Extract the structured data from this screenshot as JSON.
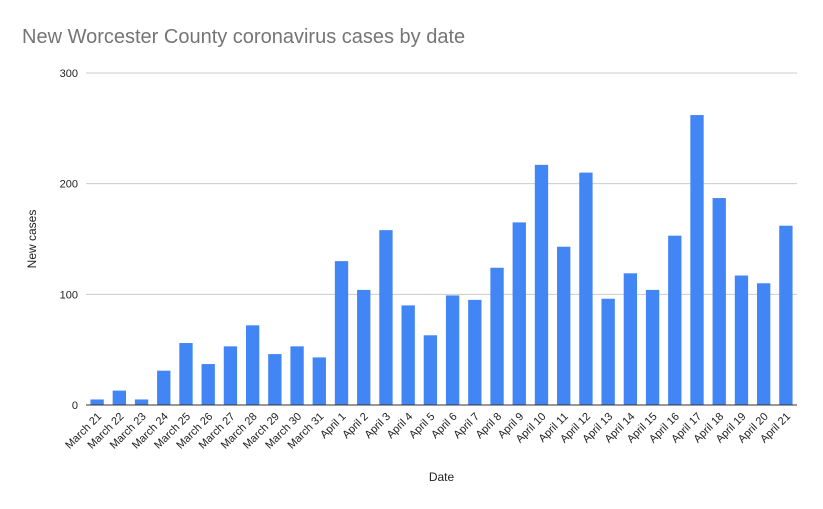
{
  "chart_data": {
    "type": "bar",
    "title": "New Worcester County coronavirus cases by date",
    "xlabel": "Date",
    "ylabel": "New cases",
    "ylim": [
      0,
      300
    ],
    "yticks": [
      0,
      100,
      200,
      300
    ],
    "grid": true,
    "legend": "none",
    "bar_color": "#4285f4",
    "categories": [
      "March 21",
      "March 22",
      "March 23",
      "March 24",
      "March 25",
      "March 26",
      "March 27",
      "March 28",
      "March 29",
      "March 30",
      "March 31",
      "April 1",
      "April 2",
      "April 3",
      "April 4",
      "April 5",
      "April 6",
      "April 7",
      "April 8",
      "April 9",
      "April 10",
      "April 11",
      "April 12",
      "April 13",
      "April 14",
      "April 15",
      "April 16",
      "April 17",
      "April 18",
      "April 19",
      "April 20",
      "April 21"
    ],
    "values": [
      5,
      13,
      5,
      31,
      56,
      37,
      53,
      72,
      46,
      53,
      43,
      130,
      104,
      158,
      90,
      63,
      99,
      95,
      124,
      165,
      217,
      143,
      210,
      96,
      119,
      104,
      153,
      262,
      187,
      117,
      110,
      162
    ]
  }
}
